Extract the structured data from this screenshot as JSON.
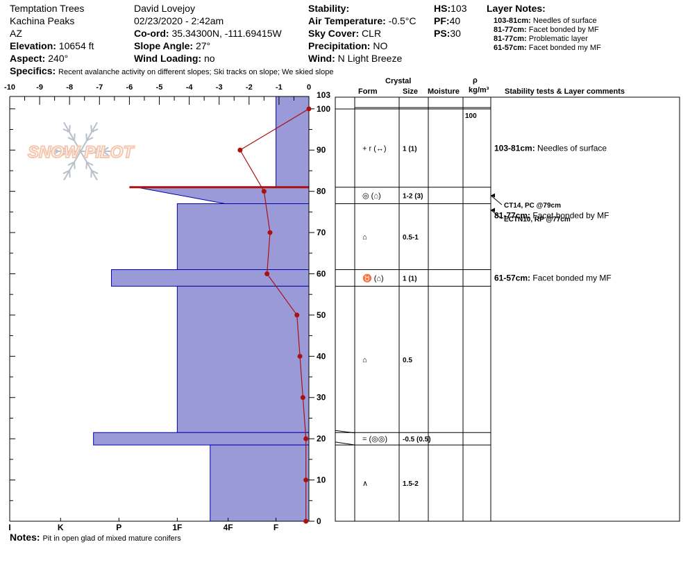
{
  "header": {
    "location": "Temptation Trees",
    "range": "Kachina Peaks",
    "state": "AZ",
    "elevation_label": "Elevation:",
    "elevation_value": "10654 ft",
    "aspect_label": "Aspect:",
    "aspect_value": "240°",
    "observer": "David Lovejoy",
    "datetime": "02/23/2020 - 2:42am",
    "coord_label": "Co-ord:",
    "coord_value": "35.34300N, -111.69415W",
    "slope_label": "Slope Angle:",
    "slope_value": "27°",
    "wind_loading_label": "Wind Loading:",
    "wind_loading_value": "no",
    "stability_label": "Stability:",
    "stability_value": "",
    "air_temp_label": "Air Temperature:",
    "air_temp_value": "-0.5°C",
    "sky_label": "Sky Cover:",
    "sky_value": "CLR",
    "precip_label": "Precipitation:",
    "precip_value": "NO",
    "wind_label": "Wind:",
    "wind_value": "N Light Breeze",
    "hs_label": "HS:",
    "hs_value": "103",
    "pf_label": "PF:",
    "pf_value": "40",
    "ps_label": "PS:",
    "ps_value": "30",
    "layer_notes_title": "Layer Notes:",
    "layer_notes": [
      {
        "range": "103-81cm:",
        "text": "Needles of surface"
      },
      {
        "range": "81-77cm:",
        "text": "Facet bonded by MF"
      },
      {
        "range": "81-77cm:",
        "text": "Problematic layer"
      },
      {
        "range": "61-57cm:",
        "text": "Facet bonded my MF"
      }
    ],
    "specifics_label": "Specifics:",
    "specifics_value": "Recent avalanche activity on different slopes;  Ski tracks on slope;  We skied slope"
  },
  "footer": {
    "notes_label": "Notes:",
    "notes_value": "Pit in open glad of mixed mature conifers"
  },
  "watermark": {
    "text": "SNOW PILOT",
    "color": "#f4c7ae"
  },
  "table": {
    "headers": {
      "crystal": "Crystal",
      "form": "Form",
      "size": "Size",
      "moisture": "Moisture",
      "rho": "ρ",
      "density_unit": "kg/m³",
      "comments": "Stability tests & Layer comments"
    }
  },
  "chart_data": {
    "type": "snow-profile",
    "colors": {
      "hardness_fill": "#9a9ad8",
      "hardness_edge": "#0000aa",
      "temperature": "#aa1111",
      "failure_line": "#aa1111"
    },
    "temperature_axis": {
      "ticks": [
        "-10",
        "-9",
        "-8",
        "-7",
        "-6",
        "-5",
        "-4",
        "-3",
        "-2",
        "-1",
        "0"
      ],
      "range": [
        -10,
        0
      ]
    },
    "depth_axis": {
      "ticks": [
        "0",
        "10",
        "20",
        "30",
        "40",
        "50",
        "60",
        "70",
        "80",
        "90",
        "100"
      ],
      "top_label": "103",
      "range": [
        0,
        103
      ]
    },
    "hardness_axis": {
      "labels": [
        "I",
        "K",
        "P",
        "1F",
        "4F",
        "F"
      ],
      "values": [
        10,
        8.3,
        6.35,
        4.4,
        2.7,
        1.1
      ]
    },
    "hardness_layers": [
      {
        "top": 103,
        "bottom": 81,
        "hardness": 1.1
      },
      {
        "top": 81,
        "bottom": 77,
        "hardness": 2.8,
        "tapered": true
      },
      {
        "top": 77,
        "bottom": 61,
        "hardness": 4.4
      },
      {
        "top": 61,
        "bottom": 57,
        "hardness": 6.6
      },
      {
        "top": 57,
        "bottom": 21.5,
        "hardness": 4.4
      },
      {
        "top": 21.5,
        "bottom": 18.5,
        "hardness": 7.2
      },
      {
        "top": 18.5,
        "bottom": 0,
        "hardness": 3.3
      }
    ],
    "failure_layer": {
      "depth": 81,
      "hardness": 6.0
    },
    "temperature_profile": [
      {
        "depth": 100,
        "temp": 0.0
      },
      {
        "depth": 90,
        "temp": -2.3
      },
      {
        "depth": 80,
        "temp": -1.5
      },
      {
        "depth": 70,
        "temp": -1.3
      },
      {
        "depth": 60,
        "temp": -1.4
      },
      {
        "depth": 50,
        "temp": -0.4
      },
      {
        "depth": 40,
        "temp": -0.3
      },
      {
        "depth": 30,
        "temp": -0.2
      },
      {
        "depth": 20,
        "temp": -0.1
      },
      {
        "depth": 10,
        "temp": -0.1
      },
      {
        "depth": 0,
        "temp": -0.1
      }
    ],
    "grid_boundaries": [
      103,
      81,
      77,
      61,
      57,
      21.5,
      18.5
    ],
    "grid_layers": [
      {
        "top": 103,
        "bottom": 81,
        "form": "+ r (↔)",
        "size": "1 (1)",
        "comment_range": "103-81cm:",
        "comment": "Needles of surface"
      },
      {
        "top": 81,
        "bottom": 77,
        "form": "◎ (⌂)",
        "size": "1-2 (3)",
        "comment_range": "",
        "comment": ""
      },
      {
        "top": 77,
        "bottom": 61,
        "form": "⌂",
        "size": "0.5-1",
        "comment_range": "81-77cm:",
        "comment": "Facet bonded by MF"
      },
      {
        "top": 61,
        "bottom": 57,
        "form": "♉ (⌂)",
        "size": "1 (1)",
        "comment_range": "61-57cm:",
        "comment": "Facet bonded my MF"
      },
      {
        "top": 57,
        "bottom": 21.5,
        "form": "⌂",
        "size": "0.5",
        "comment_range": "",
        "comment": ""
      },
      {
        "top": 21.5,
        "bottom": 18.5,
        "form": "= (◎◎)",
        "size": "-0.5 (0.5)",
        "comment_range": "",
        "comment": ""
      },
      {
        "top": 18.5,
        "bottom": 0,
        "form": "∧",
        "size": "1.5-2",
        "comment_range": "",
        "comment": ""
      }
    ],
    "density": [
      {
        "depth": 103,
        "value": "100"
      }
    ],
    "stability_tests": [
      {
        "depth": 79,
        "text": "CT14, PC @79cm"
      },
      {
        "depth": 77,
        "text": "ECTN10, RP @77cm"
      }
    ]
  }
}
